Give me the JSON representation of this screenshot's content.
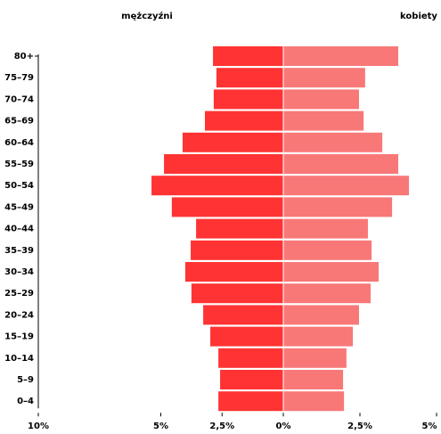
{
  "chart_data": {
    "type": "pyramid",
    "categories": [
      "80+",
      "75–79",
      "70–74",
      "65–69",
      "60–64",
      "55–59",
      "50–54",
      "45–49",
      "40–44",
      "35–39",
      "30–34",
      "25–29",
      "20–24",
      "15–19",
      "10–14",
      "5–9",
      "0–4"
    ],
    "series": [
      {
        "name": "mężczyźni",
        "color": "#ff3333",
        "side": "left",
        "values": [
          2.87,
          2.73,
          2.84,
          3.2,
          4.11,
          4.87,
          5.38,
          4.55,
          3.56,
          3.78,
          4.0,
          3.75,
          3.27,
          2.98,
          2.65,
          2.58,
          2.65
        ]
      },
      {
        "name": "kobiety",
        "color": "#f87878",
        "side": "right",
        "values": [
          3.75,
          2.67,
          2.47,
          2.62,
          3.23,
          3.75,
          4.1,
          3.55,
          2.76,
          2.88,
          3.11,
          2.85,
          2.47,
          2.27,
          2.06,
          1.95,
          1.98
        ]
      }
    ],
    "left_xlim": [
      10,
      0
    ],
    "right_xlim": [
      0,
      5
    ],
    "left_xticks": [
      {
        "value": 10,
        "label": "10%"
      },
      {
        "value": 5,
        "label": "5%"
      },
      {
        "value": 2.5,
        "label": "2,5%"
      },
      {
        "value": 0,
        "label": "0%"
      }
    ],
    "right_xticks": [
      {
        "value": 2.5,
        "label": "2,5%"
      },
      {
        "value": 5,
        "label": "5%"
      }
    ]
  }
}
